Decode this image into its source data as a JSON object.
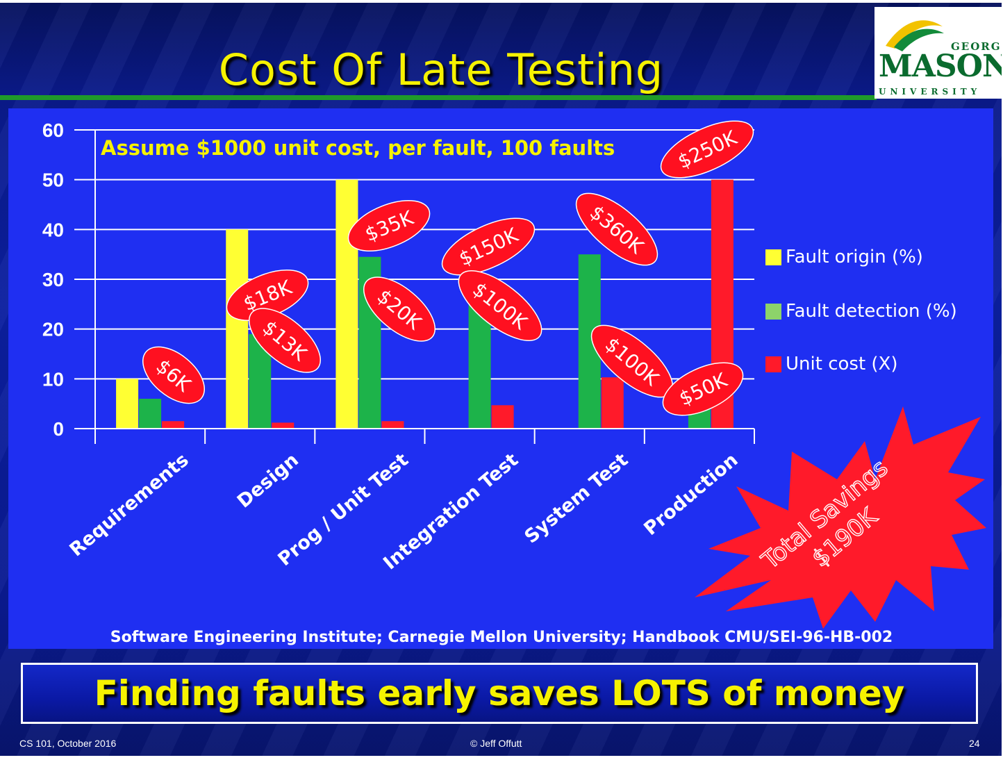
{
  "slide": {
    "title": "Cost Of Late Testing",
    "logo": {
      "line1": "GEORGE",
      "line2": "MASON",
      "line3": "UNIVERSITY"
    },
    "subtitle": "Assume $1000 unit cost, per fault, 100 faults",
    "source": "Software Engineering Institute; Carnegie Mellon University;  Handbook CMU/SEI-96-HB-002",
    "headline": "Finding faults early saves LOTS of money",
    "footer": {
      "left": "CS 101, October 2016",
      "center": "© Jeff Offutt",
      "right": "24"
    },
    "starburst": {
      "line1": "Total Savings",
      "line2": "$190K"
    }
  },
  "colors": {
    "yellow": "#ffff33",
    "green": "#1db34a",
    "red": "#ff1a2a",
    "panel": "#1f2ff2",
    "title": "#f6f200"
  },
  "chart_data": {
    "type": "bar",
    "categories": [
      "Requirements",
      "Design",
      "Prog / Unit Test",
      "Integration Test",
      "System Test",
      "Production"
    ],
    "series": [
      {
        "name": "Fault origin (%)",
        "color": "#ffff33",
        "values": [
          10,
          40,
          50,
          0,
          0,
          0
        ]
      },
      {
        "name": "Fault detection (%)",
        "color": "#1db34a",
        "values": [
          6,
          19,
          34.5,
          30,
          35,
          5
        ]
      },
      {
        "name": "Unit cost (X)",
        "color": "#ff1a2a",
        "values": [
          1.5,
          1.2,
          1.5,
          4.7,
          10.3,
          50
        ]
      }
    ],
    "ylim": [
      0,
      60
    ],
    "yticks": [
      0,
      10,
      20,
      30,
      40,
      50,
      60
    ],
    "grid": true,
    "legend": "right",
    "annotations": [
      "$6K",
      "$18K",
      "$13K",
      "$35K",
      "$20K",
      "$150K",
      "$100K",
      "$360K",
      "$100K",
      "$250K",
      "$50K"
    ]
  }
}
